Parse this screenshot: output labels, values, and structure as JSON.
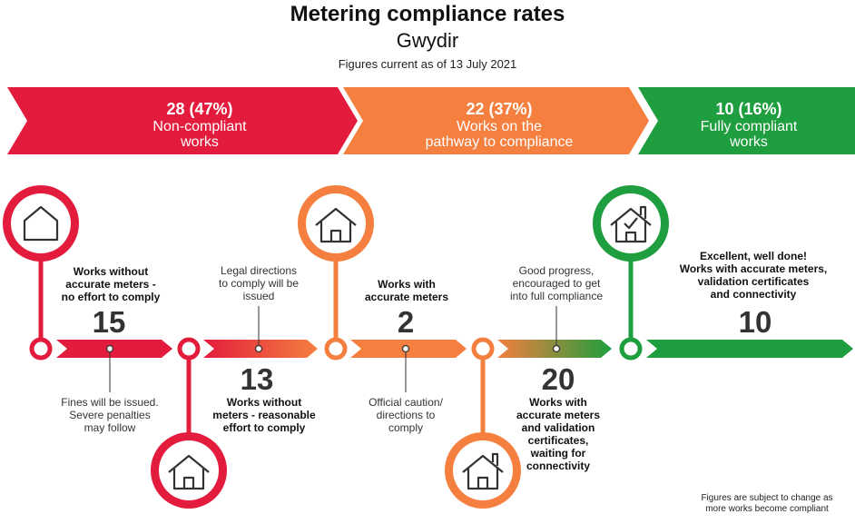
{
  "header": {
    "title": "Metering compliance rates",
    "subtitle": "Gwydir",
    "date": "Figures current as of 13 July 2021"
  },
  "banners": [
    {
      "value": "28 (47%)",
      "line1": "Non-compliant",
      "line2": "works",
      "color": "#E31C3D"
    },
    {
      "value": "22 (37%)",
      "line1": "Works on the",
      "line2": "pathway to compliance",
      "color": "#F47F3F"
    },
    {
      "value": "10 (16%)",
      "line1": "Fully compliant",
      "line2": "works",
      "color": "#1E9E3E"
    }
  ],
  "stages": [
    {
      "count": "15",
      "label": [
        "Works without",
        "accurate meters -",
        "no effort to comply"
      ],
      "note": [
        "Fines will be issued.",
        "Severe penalties",
        "may follow"
      ]
    },
    {
      "count": "13",
      "label": [
        "Works without",
        "meters - reasonable",
        "effort to comply"
      ],
      "note": [
        "Legal directions",
        "to comply will be",
        "issued"
      ]
    },
    {
      "count": "2",
      "label": [
        "Works with",
        "accurate meters"
      ],
      "note": [
        "Official caution/",
        "directions to",
        "comply"
      ]
    },
    {
      "count": "20",
      "label": [
        "Works with",
        "accurate meters",
        "and validation",
        "certificates,",
        "waiting for",
        "connectivity"
      ],
      "note": [
        "Good progress,",
        "encouraged to get",
        "into full compliance"
      ]
    },
    {
      "count": "10",
      "label": [
        "Excellent, well done!",
        "Works with accurate meters,",
        "validation certificates",
        "and connectivity"
      ],
      "note": []
    }
  ],
  "icons": [
    "house-icon",
    "house-icon",
    "house-icon",
    "house-icon",
    "house-check-icon"
  ],
  "colors": {
    "red": "#E31C3D",
    "orange": "#F47F3F",
    "green": "#1E9E3E"
  },
  "footnote": [
    "Figures are subject to change as",
    "more works become compliant"
  ]
}
